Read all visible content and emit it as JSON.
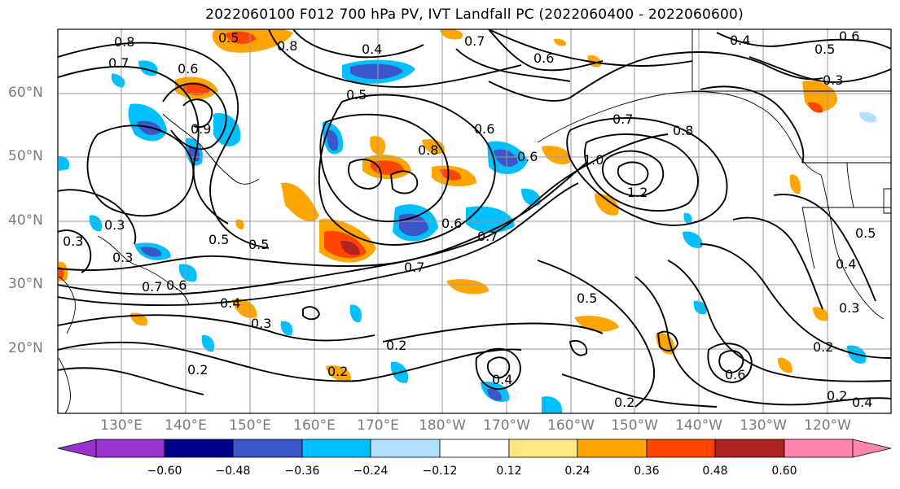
{
  "title": "2022060100 F012 700 hPa PV, IVT Landfall PC (2022060400 - 2022060600)",
  "lat_labels": [
    "60°N",
    "50°N",
    "40°N",
    "30°N",
    "20°N"
  ],
  "lon_labels": [
    "130°E",
    "140°E",
    "150°E",
    "160°E",
    "170°E",
    "180°W",
    "170°W",
    "160°W",
    "150°W",
    "140°W",
    "130°W",
    "120°W"
  ],
  "contour_labels": [
    "0.8",
    "0.5",
    "0.7",
    "0.6",
    "0.8",
    "0.4",
    "0.7",
    "0.6",
    "0.5",
    "0.4",
    "0.5",
    "0.6",
    "0.3",
    "0.9",
    "0.7",
    "0.8",
    "0.6",
    "0.8",
    "0.6",
    "1.0",
    "1.2",
    "0.5",
    "0.5",
    "0.3",
    "0.3",
    "0.6",
    "0.7",
    "0.5",
    "0.7",
    "0.6",
    "0.7",
    "0.4",
    "0.3",
    "0.5",
    "0.3",
    "0.4",
    "0.2",
    "0.2",
    "0.3",
    "0.2",
    "0.4",
    "0.6",
    "0.2",
    "0.2",
    "0.2",
    "0.4"
  ],
  "colorbar": {
    "ticks": [
      "−0.60",
      "−0.48",
      "−0.36",
      "−0.24",
      "−0.12",
      "0.12",
      "0.24",
      "0.36",
      "0.48",
      "0.60"
    ],
    "colors": [
      "#9932cc",
      "#00008b",
      "#3a56c8",
      "#00bfff",
      "#b0e0ff",
      "#ffffff",
      "#ffe680",
      "#ffa500",
      "#ff4500",
      "#b22222",
      "#ff85b0"
    ]
  }
}
